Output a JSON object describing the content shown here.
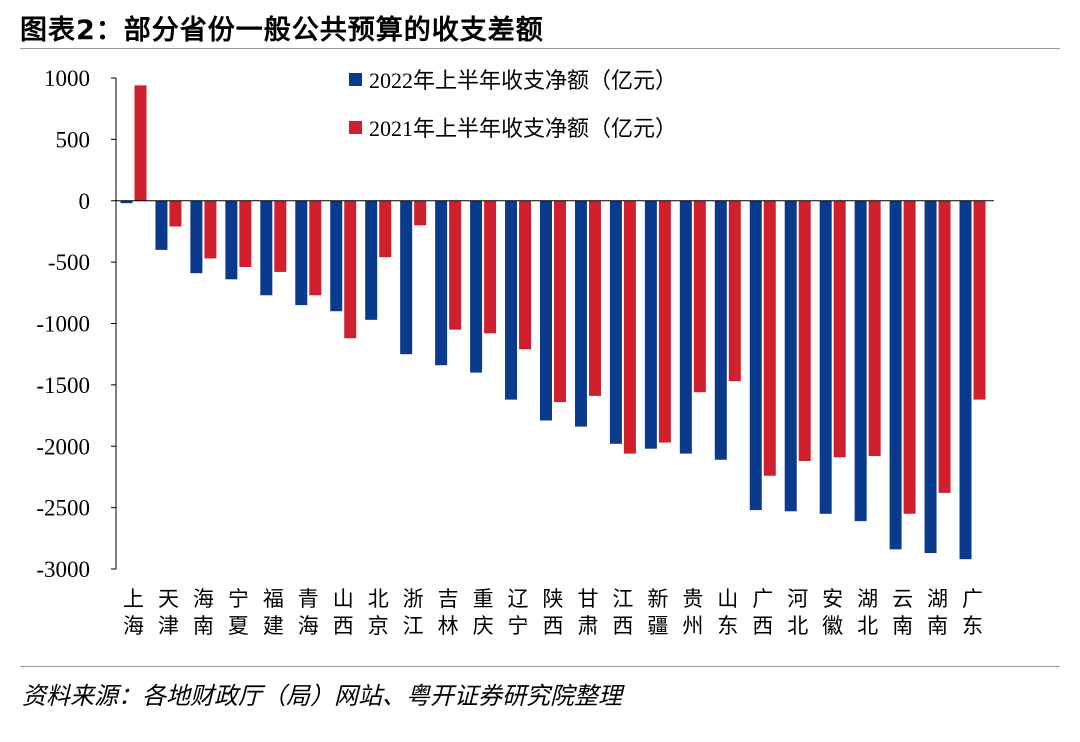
{
  "header": {
    "title": "图表2：部分省份一般公共预算的收支差额"
  },
  "footer": {
    "source": "资料来源：各地财政厅（局）网站、粤开证券研究院整理"
  },
  "colors": {
    "series_2022": "#0a3a8c",
    "series_2021": "#d0202e"
  },
  "chart_data": {
    "type": "bar",
    "title": "",
    "xlabel": "",
    "ylabel": "",
    "ylim": [
      -3000,
      1000
    ],
    "yticks": [
      1000,
      500,
      0,
      -500,
      -1000,
      -1500,
      -2000,
      -2500,
      -3000
    ],
    "grid": false,
    "legend": "top-center",
    "categories": [
      [
        "上",
        "海"
      ],
      [
        "天",
        "津"
      ],
      [
        "海",
        "南"
      ],
      [
        "宁",
        "夏"
      ],
      [
        "福",
        "建"
      ],
      [
        "青",
        "海"
      ],
      [
        "山",
        "西"
      ],
      [
        "北",
        "京"
      ],
      [
        "浙",
        "江"
      ],
      [
        "吉",
        "林"
      ],
      [
        "重",
        "庆"
      ],
      [
        "辽",
        "宁"
      ],
      [
        "陕",
        "西"
      ],
      [
        "甘",
        "肃"
      ],
      [
        "江",
        "西"
      ],
      [
        "新",
        "疆"
      ],
      [
        "贵",
        "州"
      ],
      [
        "山",
        "东"
      ],
      [
        "广",
        "西"
      ],
      [
        "河",
        "北"
      ],
      [
        "安",
        "徽"
      ],
      [
        "湖",
        "北"
      ],
      [
        "云",
        "南"
      ],
      [
        "湖",
        "南"
      ],
      [
        "广",
        "东"
      ]
    ],
    "series": [
      {
        "name": "2022年上半年收支净额（亿元）",
        "color": "#0a3a8c",
        "values": [
          -20,
          -400,
          -590,
          -640,
          -770,
          -850,
          -900,
          -970,
          -1250,
          -1340,
          -1400,
          -1620,
          -1790,
          -1840,
          -1980,
          -2020,
          -2060,
          -2110,
          -2520,
          -2530,
          -2550,
          -2610,
          -2840,
          -2870,
          -2920
        ]
      },
      {
        "name": "2021年上半年收支净额（亿元）",
        "color": "#d0202e",
        "values": [
          940,
          -210,
          -470,
          -540,
          -580,
          -770,
          -1120,
          -460,
          -200,
          -1050,
          -1080,
          -1210,
          -1640,
          -1590,
          -2060,
          -1970,
          -1560,
          -1470,
          -2240,
          -2120,
          -2090,
          -2080,
          -2550,
          -2380,
          -1620
        ]
      }
    ]
  }
}
